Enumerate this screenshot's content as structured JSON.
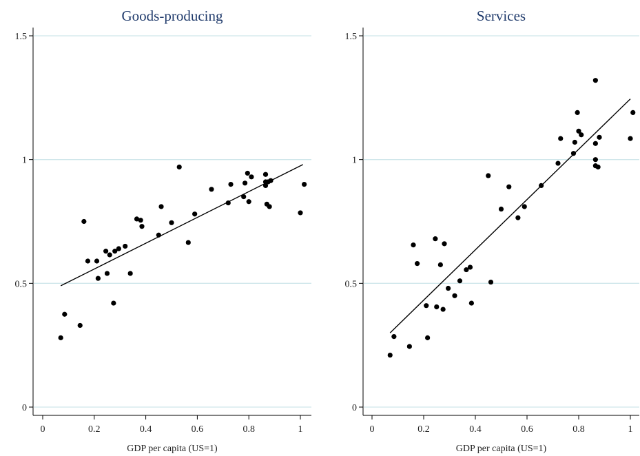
{
  "chart_data": [
    {
      "type": "scatter",
      "title": "Goods-producing",
      "xlabel": "GDP per capita (US=1)",
      "ylabel": "",
      "xlim": [
        0,
        1.05
      ],
      "ylim": [
        0,
        1.5
      ],
      "xticks": [
        "0",
        "0.2",
        "0.4",
        "0.6",
        "0.8",
        "1"
      ],
      "xtick_values": [
        0,
        0.2,
        0.4,
        0.6,
        0.8,
        1
      ],
      "yticks": [
        "0",
        "0.5",
        "1",
        "1.5"
      ],
      "ytick_values": [
        0,
        0.5,
        1,
        1.5
      ],
      "grid": "horizontal",
      "fit_line": {
        "x": [
          0.07,
          1.01
        ],
        "y": [
          0.49,
          0.98
        ]
      },
      "points": [
        {
          "x": 0.07,
          "y": 0.28
        },
        {
          "x": 0.085,
          "y": 0.375
        },
        {
          "x": 0.145,
          "y": 0.33
        },
        {
          "x": 0.16,
          "y": 0.75
        },
        {
          "x": 0.175,
          "y": 0.59
        },
        {
          "x": 0.21,
          "y": 0.59
        },
        {
          "x": 0.215,
          "y": 0.52
        },
        {
          "x": 0.245,
          "y": 0.63
        },
        {
          "x": 0.25,
          "y": 0.54
        },
        {
          "x": 0.26,
          "y": 0.615
        },
        {
          "x": 0.275,
          "y": 0.42
        },
        {
          "x": 0.28,
          "y": 0.63
        },
        {
          "x": 0.295,
          "y": 0.64
        },
        {
          "x": 0.32,
          "y": 0.65
        },
        {
          "x": 0.34,
          "y": 0.54
        },
        {
          "x": 0.365,
          "y": 0.76
        },
        {
          "x": 0.38,
          "y": 0.755
        },
        {
          "x": 0.385,
          "y": 0.73
        },
        {
          "x": 0.45,
          "y": 0.695
        },
        {
          "x": 0.46,
          "y": 0.81
        },
        {
          "x": 0.5,
          "y": 0.745
        },
        {
          "x": 0.53,
          "y": 0.97
        },
        {
          "x": 0.565,
          "y": 0.665
        },
        {
          "x": 0.59,
          "y": 0.78
        },
        {
          "x": 0.655,
          "y": 0.88
        },
        {
          "x": 0.72,
          "y": 0.825
        },
        {
          "x": 0.73,
          "y": 0.9
        },
        {
          "x": 0.78,
          "y": 0.85
        },
        {
          "x": 0.785,
          "y": 0.905
        },
        {
          "x": 0.795,
          "y": 0.945
        },
        {
          "x": 0.8,
          "y": 0.83
        },
        {
          "x": 0.81,
          "y": 0.93
        },
        {
          "x": 0.865,
          "y": 0.94
        },
        {
          "x": 0.865,
          "y": 0.91
        },
        {
          "x": 0.865,
          "y": 0.895
        },
        {
          "x": 0.87,
          "y": 0.82
        },
        {
          "x": 0.875,
          "y": 0.91
        },
        {
          "x": 0.88,
          "y": 0.81
        },
        {
          "x": 0.885,
          "y": 0.915
        },
        {
          "x": 1.0,
          "y": 0.785
        },
        {
          "x": 1.015,
          "y": 0.9
        }
      ]
    },
    {
      "type": "scatter",
      "title": "Services",
      "xlabel": "GDP per capita (US=1)",
      "ylabel": "",
      "xlim": [
        0,
        1.05
      ],
      "ylim": [
        0,
        1.5
      ],
      "xticks": [
        "0",
        "0.2",
        "0.4",
        "0.6",
        "0.8",
        "1"
      ],
      "xtick_values": [
        0,
        0.2,
        0.4,
        0.6,
        0.8,
        1
      ],
      "yticks": [
        "0",
        "0.5",
        "1",
        "1.5"
      ],
      "ytick_values": [
        0,
        0.5,
        1,
        1.5
      ],
      "grid": "horizontal",
      "fit_line": {
        "x": [
          0.07,
          1.0
        ],
        "y": [
          0.3,
          1.245
        ]
      },
      "points": [
        {
          "x": 0.07,
          "y": 0.21
        },
        {
          "x": 0.085,
          "y": 0.285
        },
        {
          "x": 0.145,
          "y": 0.245
        },
        {
          "x": 0.16,
          "y": 0.655
        },
        {
          "x": 0.175,
          "y": 0.58
        },
        {
          "x": 0.21,
          "y": 0.41
        },
        {
          "x": 0.215,
          "y": 0.28
        },
        {
          "x": 0.245,
          "y": 0.68
        },
        {
          "x": 0.25,
          "y": 0.405
        },
        {
          "x": 0.265,
          "y": 0.575
        },
        {
          "x": 0.275,
          "y": 0.395
        },
        {
          "x": 0.28,
          "y": 0.66
        },
        {
          "x": 0.295,
          "y": 0.48
        },
        {
          "x": 0.32,
          "y": 0.45
        },
        {
          "x": 0.34,
          "y": 0.51
        },
        {
          "x": 0.365,
          "y": 0.555
        },
        {
          "x": 0.38,
          "y": 0.565
        },
        {
          "x": 0.385,
          "y": 0.42
        },
        {
          "x": 0.45,
          "y": 0.935
        },
        {
          "x": 0.46,
          "y": 0.505
        },
        {
          "x": 0.5,
          "y": 0.8
        },
        {
          "x": 0.53,
          "y": 0.89
        },
        {
          "x": 0.565,
          "y": 0.765
        },
        {
          "x": 0.59,
          "y": 0.81
        },
        {
          "x": 0.655,
          "y": 0.895
        },
        {
          "x": 0.72,
          "y": 0.985
        },
        {
          "x": 0.73,
          "y": 1.085
        },
        {
          "x": 0.78,
          "y": 1.025
        },
        {
          "x": 0.785,
          "y": 1.07
        },
        {
          "x": 0.795,
          "y": 1.19
        },
        {
          "x": 0.8,
          "y": 1.115
        },
        {
          "x": 0.81,
          "y": 1.1
        },
        {
          "x": 0.865,
          "y": 1.32
        },
        {
          "x": 0.865,
          "y": 1.065
        },
        {
          "x": 0.865,
          "y": 1.0
        },
        {
          "x": 0.865,
          "y": 0.975
        },
        {
          "x": 0.875,
          "y": 0.97
        },
        {
          "x": 0.88,
          "y": 1.09
        },
        {
          "x": 1.0,
          "y": 1.085
        },
        {
          "x": 1.01,
          "y": 1.19
        }
      ]
    }
  ]
}
